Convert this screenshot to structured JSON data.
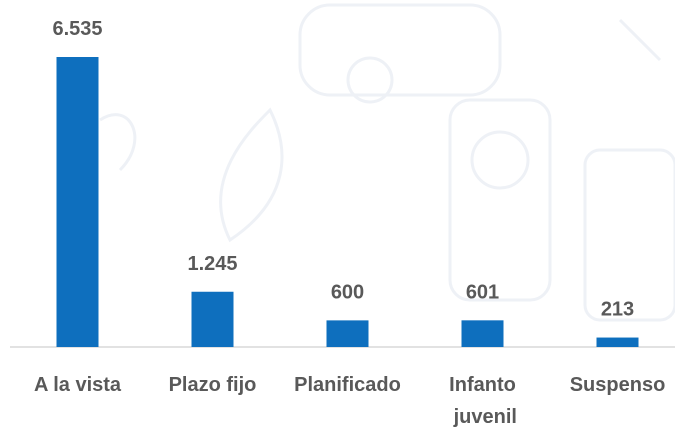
{
  "chart_data": {
    "type": "bar",
    "categories": [
      "A la vista",
      "Plazo fijo",
      "Planificado",
      "Infanto juvenil",
      "Suspenso"
    ],
    "values": [
      6535,
      1245,
      600,
      601,
      213
    ],
    "value_labels": [
      "6.535",
      "1.245",
      "600",
      "601",
      "213"
    ],
    "color": "#0e6fbe"
  }
}
